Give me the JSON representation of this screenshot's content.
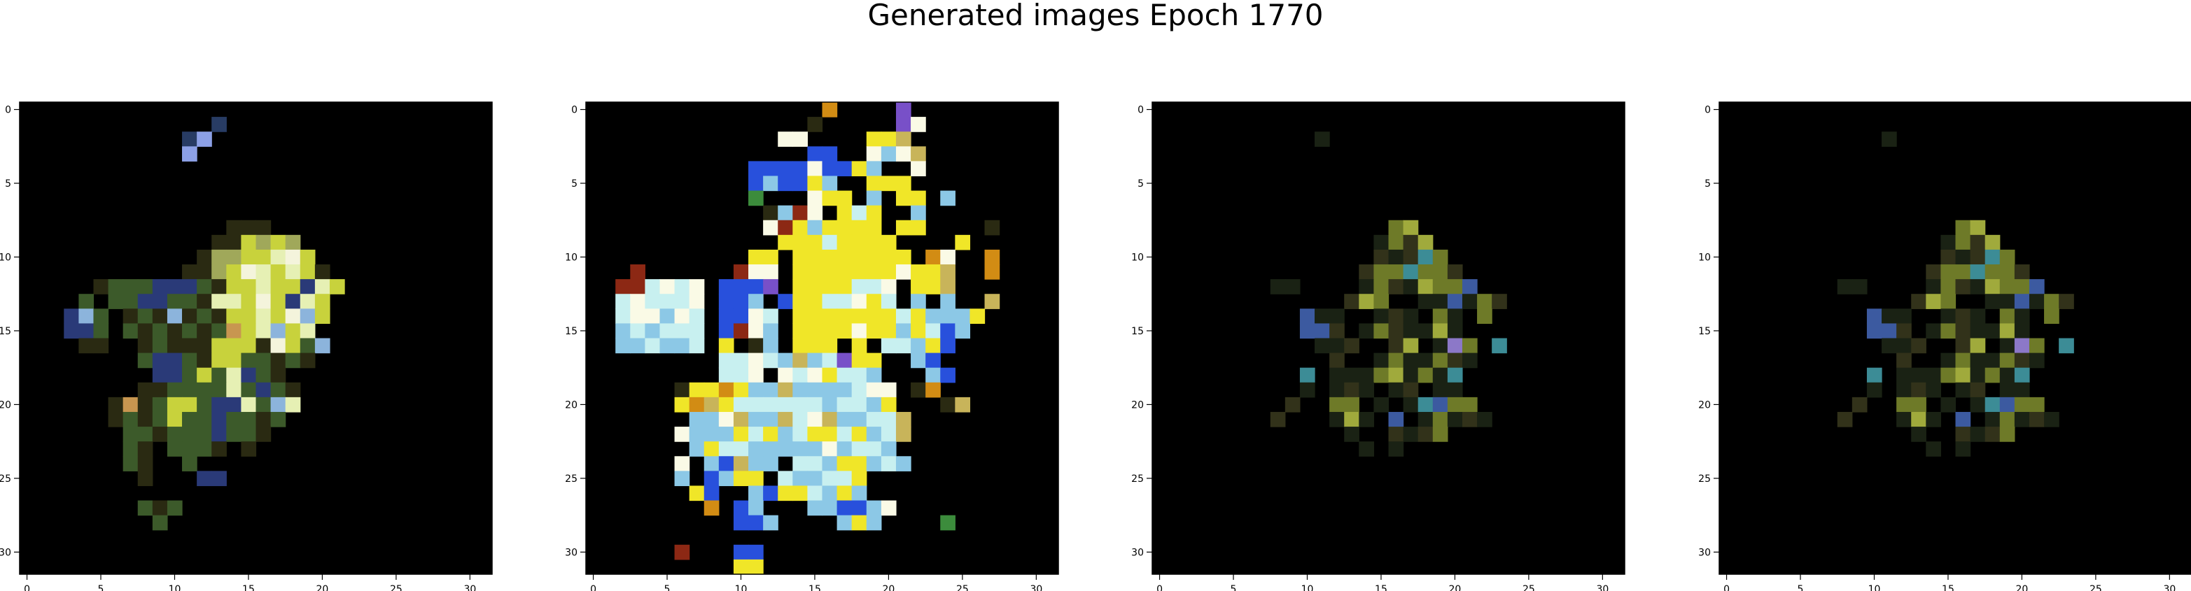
{
  "figure": {
    "title": "Generated images Epoch 1770",
    "background": "#ffffff",
    "axis_color": "#000000"
  },
  "chart_data": [
    {
      "type": "heatmap",
      "description_kind": "image",
      "grid_size": [
        32,
        32
      ],
      "xlim": [
        -0.5,
        31.5
      ],
      "ylim": [
        31.5,
        -0.5
      ],
      "x_ticks": [
        0,
        5,
        10,
        15,
        20,
        25,
        30
      ],
      "y_ticks": [
        0,
        5,
        10,
        15,
        20,
        25,
        30
      ],
      "pixel_rows": [
        "ggggggggggggggggggggggggggggggggg",
        "ggggggggggggg1gggggggggggggggggg",
        "ggggggggggg12ggggggggggggggggggg",
        "ggggggggggg2gggggggggggggggggggg",
        "gggggggggggggggggggggggggggggggg",
        "gggggggggggggggggggggggggggggggg",
        "gggggggggggggggggggggggggggggggg",
        "gggggggggggggggggggggggggggggggg",
        "ggggggggggggggdddggggggggggggggg",
        "gggggggggggggddyayagggggggggggggg",
        "ggggggggggggdaayylwygggggggggggg",
        "gggggggggggddaywlylydggggggggggg",
        "gggggdsssbbbsdyylyyblygggggggggg",
        "ggggsgssbbssdllywyblygggggggggg",
        "gggbcsgdsdcdsdyylywcyggggggggggg",
        "gggbbsgsdsdsdsoylcylgggggggggggg",
        "ggggddggdsdddyyydwyscgggggggggg",
        "ggggggggsbbsdyyssdsdgggggggggggg",
        "gggggggggbbsyslbsdgggggggggggggg",
        "ggggggggddsssslsbsdgggggggggggggg",
        "ggggggdodsyysbblsclggggggggggggg",
        "ggggggdsdsyssbssdsgggggggggggggg",
        "gggggggssdsssbssdggggggggggggggg",
        "gggggggsdgsssdgdgggggggggggggggg",
        "gggggggsdggsggggggggggggggggggggg",
        "ggggggggdgggbbgggggggggggggggggg",
        "gggggggggggggggggggggggggggggggg",
        "ggggggggsdsgggggggggggggggggggggg",
        "gggggggggsgggggggggggggggggggggg",
        "gggggggggggggggggggggggggggggggg",
        "gggggggggggggggggggggggggggggggg",
        "gggggggggggggggggggggggggggggggg"
      ],
      "palette": {
        "g": "#000000",
        "d": "#2a2a12",
        "s": "#3c5a2a",
        "y": "#c8d23c",
        "a": "#a0a85a",
        "l": "#e6f0b4",
        "w": "#f4f4dc",
        "b": "#2a3a78",
        "c": "#8cb4dc",
        "1": "#283c64",
        "2": "#8ca0e6",
        "o": "#c89650"
      }
    },
    {
      "type": "heatmap",
      "description_kind": "image",
      "grid_size": [
        32,
        32
      ],
      "xlim": [
        -0.5,
        31.5
      ],
      "ylim": [
        31.5,
        -0.5
      ],
      "x_ticks": [
        0,
        5,
        10,
        15,
        20,
        25,
        30
      ],
      "y_ticks": [
        0,
        5,
        10,
        15,
        20,
        25,
        30
      ],
      "pixel_rows": [
        "ggggggggggggggggoggggpgggggggggg",
        "gggggggggggggggdgggggpwgggggggggg",
        "gggggggggggggwwggggyyaggggggggggg",
        "gggggggggggggggbbggwcwaggggggggg",
        "gggggggggggbbbbwbbycggwgggggggggg",
        "gggggggggggbcbbycggyyyggggggggggg",
        "gggggggggggsgggwyygcgyygcggggggg",
        "ggggggggggggdcrwgylyggcgggggggggg",
        "ggggggggggggwrycyyyygyyggggdgggg",
        "gggggggggggggyyylyyyyggggygggggg",
        "gggggggggggyygyyyyyyyygowggoggg",
        "gggrggggggrwwgyyyyyyywyyaggoggg",
        "ggrrlwlwgbbbpgyyyyllwgyyagggggg",
        "gglwlllwgbbcgbyyllwylgcgcggagg",
        "gglwwcwlgbbwlgyyyyyyylycccyggg",
        "ggclclllgbrwcgyyyywyycylbcgggg",
        "ggcclcclgygdcgyyygygllcybgggg",
        "gggggggggllwlcaclpyyggcbgggggg",
        "gggggggggllwgwlwyllcgggcbgggggg",
        "ggggggdyyoyccacccclwwgdogggg",
        "ggggggyoayllllllcllcygggdaggg",
        "gggggggccwaccalwaccllaggggggg",
        "ggggggwcccylyclyylyclagggggggg",
        "gggggggcyllcccccwcllcgggggggg",
        "ggggggwgcbaccgllcyyclcgggggggg",
        "ggggggcgbcyyglccllygggggggggg",
        "gggggggybggcbyylcycgggggggggg",
        "ggggggggogbcgggccbbcwggggggggg",
        "ggggggggggbbcggggcycggggsggggg",
        "gggggggggggggggggggggggggggggg",
        "ggggggrgggbbgggggggggggggggggg",
        "ggggggggggyyggggggggggggggggggg"
      ],
      "palette": {
        "g": "#000000",
        "d": "#2a2a12",
        "s": "#3c8c3c",
        "y": "#f0e628",
        "a": "#c8b45a",
        "l": "#c8f0f0",
        "w": "#fafae6",
        "b": "#2850dc",
        "c": "#8cc8e6",
        "p": "#7850c8",
        "r": "#8c2814",
        "o": "#d28c14"
      }
    },
    {
      "type": "heatmap",
      "description_kind": "image",
      "grid_size": [
        32,
        32
      ],
      "xlim": [
        -0.5,
        31.5
      ],
      "ylim": [
        31.5,
        -0.5
      ],
      "x_ticks": [
        0,
        5,
        10,
        15,
        20,
        25,
        30
      ],
      "y_ticks": [
        0,
        5,
        10,
        15,
        20,
        25,
        30
      ],
      "pixel_rows": [
        "gggggggggggggggggggggggggggggggg",
        "gggggggggggggggggggggggggggggggg",
        "gggggggggggkggggggggggggggggggggg",
        "gggggggggggggggggggggggggggggggg",
        "gggggggggggggggggggggggggggggggg",
        "gggggggggggggggggggggggggggggggg",
        "gggggggggggggggggggggggggggggggg",
        "gggggggggggggggggggggggggggggggg",
        "ggggggggggggggggmaggggggggggggggg",
        "gggggggggggggggkmdaggggggggggggg",
        "gggggggggggggggdkdcmggggggggggg",
        "ggggggggggggggdmmcmmdggggggggggg",
        "ggggggggkkggggkmdkammbgggggggggg",
        "gggggggggggggdamggkkbkmdgggggggg",
        "ggggggggggbkkggkdkgmkgmgggggggggg",
        "ggggggggggbbdgkmdkkakgggggggggg",
        "gggggggggggkkdggdagkpmgcgggggggg",
        "ggggggggggggdggkmkkmdkgggggggggg",
        "ggggggggggcgkkkmakmkcggggggggggg",
        "ggggggggggkgkdkgkdgkkgggggggggg",
        "gggggggggdggmmgkgkcbmmgggggggggg",
        "ggggggggdgggkakgbgkmkdkgggggggggg",
        "gggggggggggggkggdkdmgggggggggggg",
        "ggggggggggggggkgkgggggggggggggggg",
        "gggggggggggggggggggggggggggggggg",
        "gggggggggggggggggggggggggggggggg",
        "gggggggggggggggggggggggggggggggg",
        "gggggggggggggggggggggggggggggggg",
        "gggggggggggggggggggggggggggggggg",
        "gggggggggggggggggggggggggggggggg",
        "gggggggggggggggggggggggggggggggg",
        "gggggggggggggggggggggggggggggggg"
      ],
      "palette": {
        "g": "#000000",
        "k": "#1a2214",
        "d": "#32321a",
        "m": "#6e7a28",
        "a": "#a0aa3c",
        "b": "#3c5aa0",
        "c": "#3c8c96",
        "p": "#8c78c8"
      }
    },
    {
      "type": "heatmap",
      "description_kind": "image",
      "grid_size": [
        32,
        32
      ],
      "xlim": [
        -0.5,
        31.5
      ],
      "ylim": [
        31.5,
        -0.5
      ],
      "x_ticks": [
        0,
        5,
        10,
        15,
        20,
        25,
        30
      ],
      "y_ticks": [
        0,
        5,
        10,
        15,
        20,
        25,
        30
      ],
      "pixel_rows": [
        "gggggggggggggggggggggggggggggggg",
        "gggggggggggggggggggggggggggggggg",
        "gggggggggggkggggggggggggggggggggg",
        "gggggggggggggggggggggggggggggggg",
        "gggggggggggggggggggggggggggggggg",
        "gggggggggggggggggggggggggggggggg",
        "gggggggggggggggggggggggggggggggg",
        "gggggggggggggggggggggggggggggggg",
        "ggggggggggggggggmaggggggggggggggg",
        "gggggggggggggggkmdaggggggggggggg",
        "gggggggggggggggdkdcmggggggggggg",
        "ggggggggggggggdmmcmmdggggggggggg",
        "ggggggggkkggggkmdkammbgggggggggg",
        "gggggggggggggdamggkkbkmdgggggggg",
        "ggggggggggbkkggkdkgmkgmgggggggggg",
        "ggggggggggbbdgkmdkkakgggggggggg",
        "gggggggggggkkdggdagkpmgcgggggggg",
        "ggggggggggggdggkmkkmdkgggggggggg",
        "ggggggggggcgkkkmakmkcggggggggggg",
        "ggggggggggkgkdkgkdgkkgggggggggg",
        "gggggggggdggmmgkgkcbmmgggggggggg",
        "ggggggggdgggkakgbgkmkdkgggggggggg",
        "gggggggggggggkggdkdmgggggggggggg",
        "ggggggggggggggkgkgggggggggggggggg",
        "gggggggggggggggggggggggggggggggg",
        "gggggggggggggggggggggggggggggggg",
        "gggggggggggggggggggggggggggggggg",
        "gggggggggggggggggggggggggggggggg",
        "gggggggggggggggggggggggggggggggg",
        "gggggggggggggggggggggggggggggggg",
        "gggggggggggggggggggggggggggggggg",
        "gggggggggggggggggggggggggggggggg"
      ],
      "palette": {
        "g": "#000000",
        "k": "#1a2214",
        "d": "#32321a",
        "m": "#6e7a28",
        "a": "#a0aa3c",
        "b": "#3c5aa0",
        "c": "#3c8c96",
        "p": "#8c78c8"
      }
    }
  ]
}
